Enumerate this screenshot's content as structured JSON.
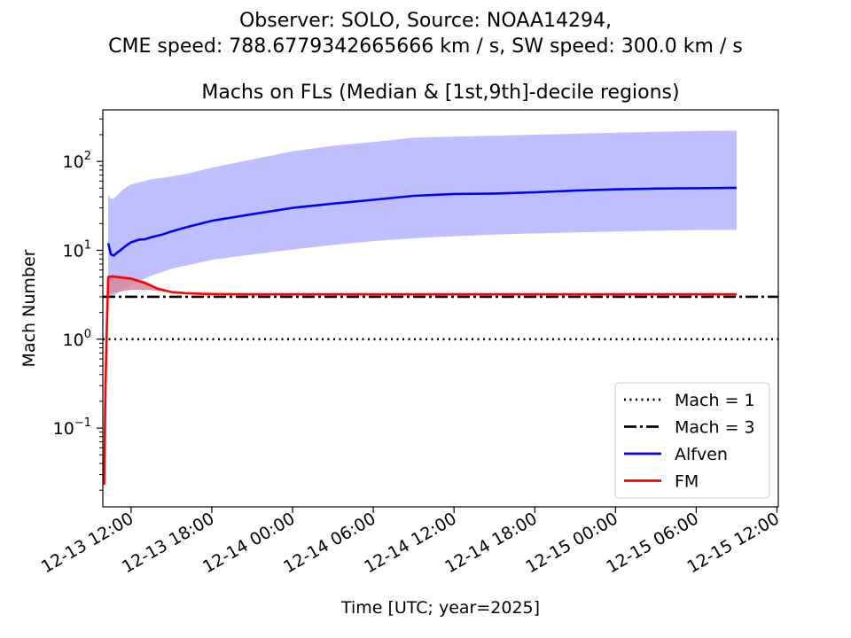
{
  "figure": {
    "suptitle_line1": "Observer: SOLO, Source: NOAA14294,",
    "suptitle_line2": "CME speed: 788.6779342665666 km / s, SW speed: 300.0 km / s"
  },
  "chart_data": {
    "type": "line",
    "title": "Machs on FLs (Median & [1st,9th]-decile regions)",
    "xlabel": "Time [UTC; year=2025]",
    "ylabel": "Mach Number",
    "yscale": "log",
    "ylim": [
      0.013,
      380
    ],
    "x_unit": "hours since 2025-12-13 00:00 UTC",
    "xlim": [
      9.9,
      60.1
    ],
    "xticks": [
      {
        "x": 12,
        "label": "12-13 12:00"
      },
      {
        "x": 18,
        "label": "12-13 18:00"
      },
      {
        "x": 24,
        "label": "12-14 00:00"
      },
      {
        "x": 30,
        "label": "12-14 06:00"
      },
      {
        "x": 36,
        "label": "12-14 12:00"
      },
      {
        "x": 42,
        "label": "12-14 18:00"
      },
      {
        "x": 48,
        "label": "12-15 00:00"
      },
      {
        "x": 54,
        "label": "12-15 06:00"
      },
      {
        "x": 60,
        "label": "12-15 12:00"
      }
    ],
    "yticks": [
      {
        "y": 0.1,
        "base": "10",
        "exp": "−1"
      },
      {
        "y": 1,
        "base": "10",
        "exp": "0"
      },
      {
        "y": 10,
        "base": "10",
        "exp": "1"
      },
      {
        "y": 100,
        "base": "10",
        "exp": "2"
      }
    ],
    "hlines": [
      {
        "name": "Mach = 1",
        "y": 1,
        "style": "dotted",
        "color": "#000000"
      },
      {
        "name": "Mach = 3",
        "y": 3,
        "style": "dashdot",
        "color": "#000000"
      }
    ],
    "series": [
      {
        "name": "Alfven",
        "color": "#0000ff",
        "band_color": "#bfbfff",
        "x": [
          10.3,
          10.5,
          10.7,
          11.0,
          11.3,
          11.7,
          12.0,
          12.6,
          13.0,
          13.5,
          14.3,
          15.0,
          16.0,
          18.0,
          21.0,
          24.0,
          27.0,
          30.0,
          33.0,
          36.0,
          39.0,
          42.0,
          45.0,
          48.0,
          51.0,
          54.0,
          57.0
        ],
        "median": [
          12.0,
          9.0,
          8.7,
          9.5,
          10.3,
          11.5,
          12.3,
          13.2,
          13.3,
          14.0,
          15.0,
          16.3,
          18.0,
          21.5,
          25.5,
          30.0,
          33.5,
          37.0,
          41.0,
          43.0,
          43.5,
          45.0,
          47.0,
          48.5,
          49.5,
          50.0,
          50.5
        ],
        "band_low": [
          2.9,
          3.0,
          3.1,
          3.3,
          3.6,
          3.9,
          4.1,
          4.5,
          4.8,
          5.2,
          5.7,
          6.2,
          6.7,
          7.8,
          9.0,
          10.2,
          11.5,
          12.7,
          13.7,
          14.4,
          15.0,
          15.5,
          15.9,
          16.3,
          16.6,
          16.9,
          17.0
        ],
        "band_high": [
          42,
          38,
          38,
          42,
          47,
          52,
          55,
          58,
          60,
          63,
          65,
          68,
          72,
          85,
          105,
          130,
          150,
          165,
          185,
          190,
          195,
          200,
          205,
          210,
          215,
          220,
          222
        ]
      },
      {
        "name": "FM",
        "color": "#ff0000",
        "band_color": "#d6889c",
        "x": [
          10.0,
          10.1,
          10.2,
          10.3,
          10.6,
          11.0,
          12.0,
          13.0,
          14.0,
          15.0,
          16.0,
          17.0,
          18.0,
          21.0,
          24.0,
          30.0,
          36.0,
          42.0,
          48.0,
          54.0,
          57.0
        ],
        "median": [
          0.023,
          0.3,
          1.5,
          5.0,
          5.1,
          5.0,
          4.8,
          4.3,
          3.7,
          3.4,
          3.3,
          3.25,
          3.22,
          3.2,
          3.2,
          3.2,
          3.2,
          3.2,
          3.2,
          3.2,
          3.2
        ],
        "band_low": [
          0.023,
          0.3,
          1.5,
          3.2,
          3.3,
          3.4,
          3.6,
          3.6,
          3.5,
          3.35,
          3.28,
          3.22,
          3.2,
          3.2,
          3.2,
          3.2,
          3.2,
          3.2,
          3.2,
          3.2,
          3.2
        ],
        "band_high": [
          0.023,
          0.3,
          1.5,
          5.2,
          5.2,
          5.2,
          5.0,
          4.5,
          3.8,
          3.45,
          3.32,
          3.26,
          3.22,
          3.2,
          3.2,
          3.2,
          3.2,
          3.2,
          3.2,
          3.2,
          3.2
        ]
      }
    ],
    "legend": {
      "position": "lower-right",
      "entries": [
        {
          "label": "Mach = 1",
          "color": "#000000",
          "style": "dotted"
        },
        {
          "label": "Mach = 3",
          "color": "#000000",
          "style": "dashdot"
        },
        {
          "label": "Alfven",
          "color": "#0000ff",
          "style": "solid"
        },
        {
          "label": "FM",
          "color": "#ff0000",
          "style": "solid"
        }
      ]
    }
  }
}
